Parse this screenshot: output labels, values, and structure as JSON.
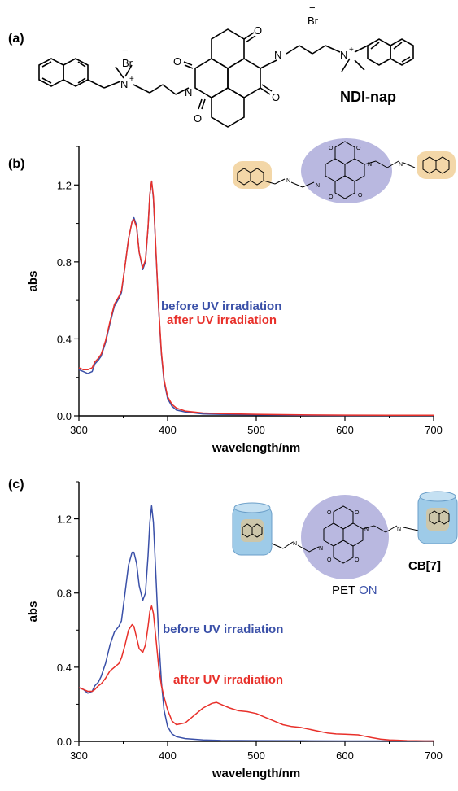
{
  "panel_a": {
    "label": "(a)",
    "compound_name": "NDI-nap",
    "counterion_1": "Br",
    "counterion_2": "Br",
    "charge": "−",
    "n_atom": "N",
    "n_plus": "+",
    "o_atom": "O"
  },
  "panel_b": {
    "label": "(b)",
    "inset_n": "N",
    "inset_o": "O"
  },
  "panel_c": {
    "label": "(c)",
    "pet_text": "PET",
    "on_text": "ON",
    "host_label": "CB[7]",
    "inset_n": "N",
    "inset_o": "O"
  },
  "colors": {
    "before": "#3a50a8",
    "after": "#e8302a",
    "core_ellipse": "#b9b8e0",
    "nap_box": "#f3d7a8",
    "cb7": "#9ecbe8",
    "on_text": "#3a50a8"
  },
  "chart_data": [
    {
      "panel": "(b)",
      "type": "line",
      "xlabel": "wavelength/nm",
      "ylabel": "abs",
      "xlim": [
        300,
        700
      ],
      "ylim": [
        0,
        1.4
      ],
      "xticks": [
        "300",
        "400",
        "500",
        "600",
        "700"
      ],
      "yticks": [
        "0.0",
        "0.4",
        "0.8",
        "1.2"
      ],
      "series": [
        {
          "name": "before UV irradiation",
          "color": "#3a50a8",
          "x": [
            300,
            305,
            310,
            315,
            318,
            322,
            325,
            330,
            335,
            340,
            345,
            348,
            352,
            356,
            360,
            362,
            365,
            368,
            372,
            375,
            378,
            380,
            382,
            384,
            387,
            390,
            393,
            396,
            400,
            405,
            410,
            420,
            440,
            460,
            500,
            550,
            600,
            650,
            700
          ],
          "y": [
            0.24,
            0.23,
            0.22,
            0.23,
            0.27,
            0.29,
            0.31,
            0.38,
            0.48,
            0.57,
            0.61,
            0.64,
            0.78,
            0.92,
            1.01,
            1.03,
            0.99,
            0.85,
            0.76,
            0.8,
            0.98,
            1.15,
            1.22,
            1.13,
            0.84,
            0.55,
            0.32,
            0.18,
            0.09,
            0.05,
            0.03,
            0.02,
            0.01,
            0.008,
            0.005,
            0.003,
            0.002,
            0.002,
            0.002
          ]
        },
        {
          "name": "after UV irradiation",
          "color": "#e8302a",
          "x": [
            300,
            305,
            310,
            315,
            318,
            322,
            325,
            330,
            335,
            340,
            345,
            348,
            352,
            356,
            360,
            362,
            365,
            368,
            372,
            375,
            378,
            380,
            382,
            384,
            387,
            390,
            393,
            396,
            400,
            405,
            410,
            420,
            440,
            460,
            500,
            550,
            600,
            650,
            700
          ],
          "y": [
            0.25,
            0.24,
            0.24,
            0.25,
            0.28,
            0.3,
            0.32,
            0.39,
            0.49,
            0.58,
            0.62,
            0.65,
            0.78,
            0.92,
            1.01,
            1.02,
            0.98,
            0.85,
            0.77,
            0.81,
            0.98,
            1.15,
            1.22,
            1.14,
            0.85,
            0.56,
            0.33,
            0.19,
            0.1,
            0.06,
            0.04,
            0.025,
            0.015,
            0.012,
            0.008,
            0.005,
            0.004,
            0.003,
            0.003
          ]
        }
      ]
    },
    {
      "panel": "(c)",
      "type": "line",
      "xlabel": "wavelength/nm",
      "ylabel": "abs",
      "xlim": [
        300,
        700
      ],
      "ylim": [
        0,
        1.4
      ],
      "xticks": [
        "300",
        "400",
        "500",
        "600",
        "700"
      ],
      "yticks": [
        "0.0",
        "0.4",
        "0.8",
        "1.2"
      ],
      "series": [
        {
          "name": "before UV irradiation",
          "color": "#3a50a8",
          "x": [
            300,
            305,
            310,
            315,
            318,
            322,
            325,
            330,
            335,
            340,
            345,
            348,
            352,
            356,
            360,
            362,
            365,
            368,
            372,
            375,
            378,
            380,
            382,
            384,
            387,
            390,
            393,
            396,
            400,
            405,
            410,
            420,
            440,
            460,
            500,
            550,
            600,
            650,
            700
          ],
          "y": [
            0.29,
            0.28,
            0.26,
            0.27,
            0.3,
            0.32,
            0.35,
            0.42,
            0.52,
            0.59,
            0.62,
            0.65,
            0.8,
            0.95,
            1.02,
            1.02,
            0.96,
            0.84,
            0.76,
            0.8,
            1.0,
            1.18,
            1.27,
            1.18,
            0.88,
            0.56,
            0.32,
            0.17,
            0.08,
            0.04,
            0.025,
            0.015,
            0.008,
            0.005,
            0.004,
            0.003,
            0.002,
            0.002,
            0.002
          ]
        },
        {
          "name": "after UV irradiation",
          "color": "#e8302a",
          "x": [
            300,
            305,
            310,
            315,
            318,
            322,
            325,
            330,
            335,
            340,
            345,
            348,
            352,
            356,
            360,
            362,
            365,
            368,
            372,
            375,
            378,
            380,
            382,
            384,
            387,
            390,
            393,
            396,
            400,
            405,
            410,
            420,
            430,
            440,
            450,
            455,
            460,
            470,
            480,
            490,
            500,
            510,
            520,
            530,
            540,
            550,
            560,
            570,
            580,
            590,
            600,
            610,
            615,
            620,
            630,
            640,
            650,
            660,
            670,
            680,
            690,
            700
          ],
          "y": [
            0.29,
            0.28,
            0.27,
            0.27,
            0.28,
            0.3,
            0.31,
            0.34,
            0.38,
            0.4,
            0.42,
            0.45,
            0.52,
            0.6,
            0.63,
            0.62,
            0.56,
            0.5,
            0.48,
            0.52,
            0.62,
            0.7,
            0.73,
            0.69,
            0.55,
            0.4,
            0.3,
            0.24,
            0.17,
            0.11,
            0.09,
            0.1,
            0.14,
            0.18,
            0.205,
            0.21,
            0.2,
            0.18,
            0.165,
            0.16,
            0.15,
            0.13,
            0.11,
            0.09,
            0.08,
            0.075,
            0.065,
            0.055,
            0.045,
            0.04,
            0.038,
            0.036,
            0.035,
            0.03,
            0.02,
            0.012,
            0.008,
            0.006,
            0.004,
            0.003,
            0.002,
            0.002
          ]
        }
      ]
    }
  ]
}
